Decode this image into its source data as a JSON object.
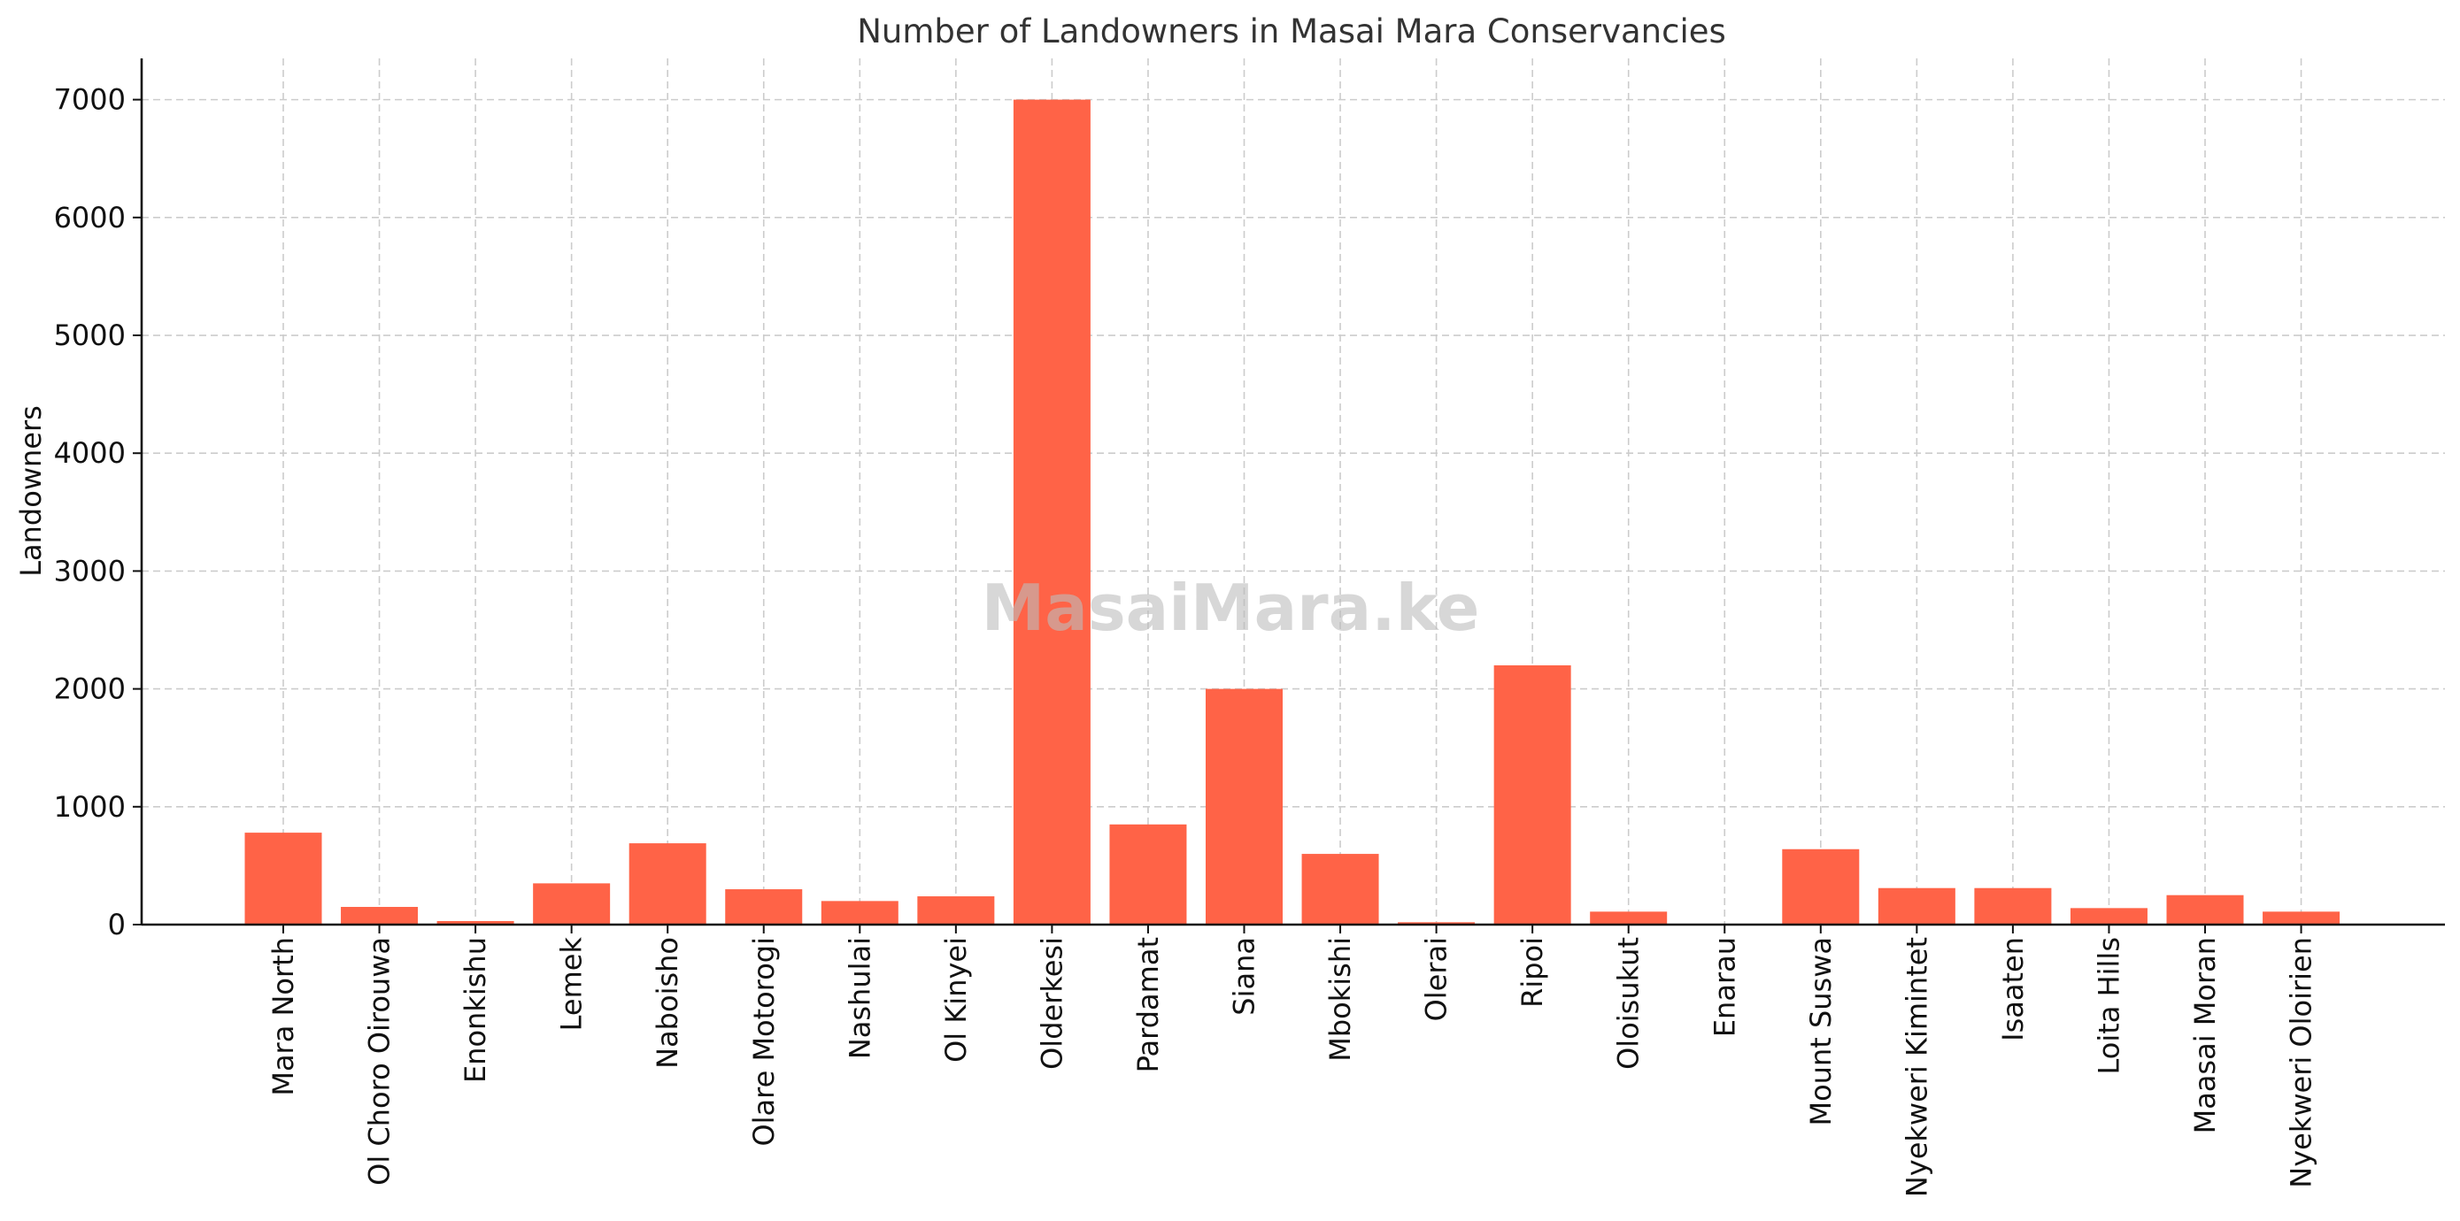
{
  "chart_data": {
    "type": "bar",
    "title": "Number of Landowners in Masai Mara Conservancies",
    "xlabel": "",
    "ylabel": "Landowners",
    "ylim": [
      0,
      7350
    ],
    "yticks": [
      0,
      1000,
      2000,
      3000,
      4000,
      5000,
      6000,
      7000
    ],
    "grid": true,
    "bar_color": "#ff6347",
    "categories": [
      "Mara North",
      "Ol Choro Oirouwa",
      "Enonkishu",
      "Lemek",
      "Naboisho",
      "Olare Motorogi",
      "Nashulai",
      "Ol Kinyei",
      "Olderkesi",
      "Pardamat",
      "Siana",
      "Mbokishi",
      "Olerai",
      "Ripoi",
      "Oloisukut",
      "Enarau",
      "Mount Suswa",
      "Nyekweri Kimintet",
      "Isaaten",
      "Loita Hills",
      "Maasai Moran",
      "Nyekweri Oloirien"
    ],
    "values": [
      780,
      150,
      30,
      350,
      690,
      300,
      200,
      240,
      7000,
      850,
      2000,
      600,
      20,
      2200,
      110,
      0,
      640,
      310,
      310,
      140,
      250,
      110
    ]
  },
  "watermark": "MasaiMara.ke"
}
